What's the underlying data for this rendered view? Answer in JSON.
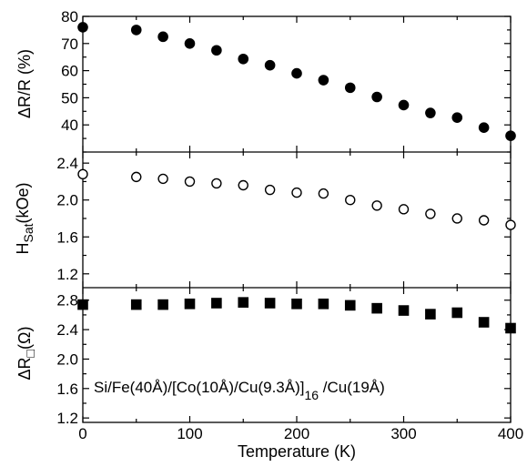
{
  "chart_data": {
    "type": "scatter",
    "shared_x": {
      "label": "Temperature (K)",
      "range": [
        0,
        400
      ],
      "ticks": [
        0,
        100,
        200,
        300,
        400
      ]
    },
    "annotation": "Si/Fe(40Å)/[Co(10Å)/Cu(9.3Å)]16 /Cu(19Å)",
    "annotation_parts": {
      "main": "Si/Fe(40Å)/[Co(10Å)/Cu(9.3Å)]",
      "subscript": "16",
      "tail": " /Cu(19Å)"
    },
    "panels": [
      {
        "ylabel_main": "ΔR/R",
        "ylabel_unit": " (%)",
        "ylim": [
          30,
          80
        ],
        "yticks": [
          40,
          50,
          60,
          70,
          80
        ],
        "marker": "filled-circle",
        "x": [
          0,
          50,
          75,
          100,
          125,
          150,
          175,
          200,
          225,
          250,
          275,
          300,
          325,
          350,
          375,
          400
        ],
        "y": [
          76,
          75,
          72.5,
          70,
          67.5,
          64.3,
          62,
          59,
          56.5,
          53.7,
          50.3,
          47.3,
          44.4,
          42.7,
          39,
          36
        ]
      },
      {
        "ylabel_main": "H",
        "ylabel_sub": "Sat",
        "ylabel_unit": "(kOe)",
        "ylim": [
          1.05,
          2.52
        ],
        "yticks": [
          1.2,
          1.6,
          2.0,
          2.4
        ],
        "ytick_labels": [
          "1.2",
          "1.6",
          "2.0",
          "2.4"
        ],
        "marker": "open-circle",
        "x": [
          0,
          50,
          75,
          100,
          125,
          150,
          175,
          200,
          225,
          250,
          275,
          300,
          325,
          350,
          375,
          400
        ],
        "y": [
          2.28,
          2.25,
          2.23,
          2.2,
          2.18,
          2.16,
          2.11,
          2.08,
          2.07,
          2.0,
          1.94,
          1.9,
          1.85,
          1.8,
          1.78,
          1.73
        ]
      },
      {
        "ylabel_main": "ΔR",
        "ylabel_sub": "□",
        "ylabel_unit": "(Ω)",
        "ylim": [
          1.14,
          2.97
        ],
        "yticks": [
          1.2,
          1.6,
          2.0,
          2.4,
          2.8
        ],
        "ytick_labels": [
          "1.2",
          "1.6",
          "2.0",
          "2.4",
          "2.8"
        ],
        "marker": "filled-square",
        "x": [
          0,
          50,
          75,
          100,
          125,
          150,
          175,
          200,
          225,
          250,
          275,
          300,
          325,
          350,
          375,
          400
        ],
        "y": [
          2.74,
          2.74,
          2.74,
          2.75,
          2.76,
          2.77,
          2.76,
          2.75,
          2.75,
          2.73,
          2.69,
          2.66,
          2.61,
          2.63,
          2.5,
          2.42
        ]
      }
    ],
    "grid": false
  },
  "colors": {
    "ink": "#000000",
    "background": "#ffffff"
  }
}
